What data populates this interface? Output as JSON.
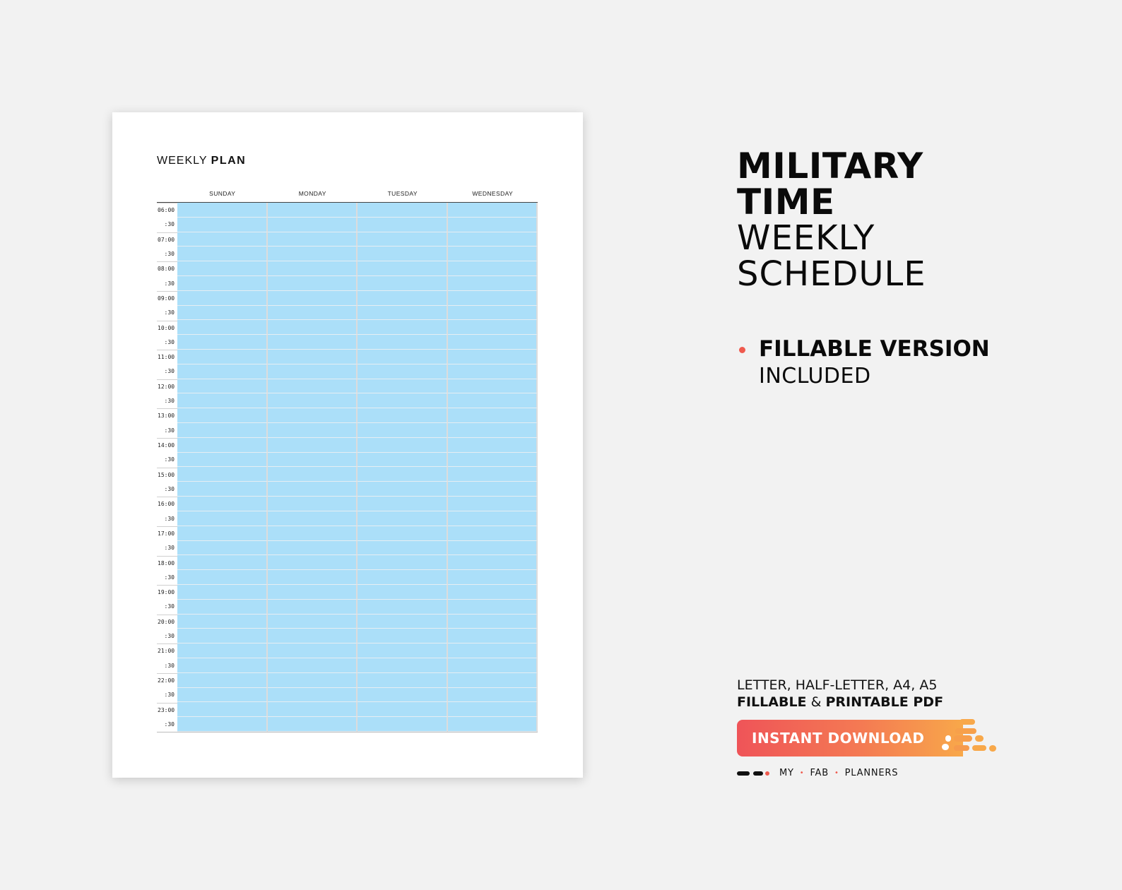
{
  "planner": {
    "title_light": "WEEKLY",
    "title_bold": "PLAN",
    "days": [
      "SUNDAY",
      "MONDAY",
      "TUESDAY",
      "WEDNESDAY"
    ],
    "times": [
      "06:00",
      ":30",
      "07:00",
      ":30",
      "08:00",
      ":30",
      "09:00",
      ":30",
      "10:00",
      ":30",
      "11:00",
      ":30",
      "12:00",
      ":30",
      "13:00",
      ":30",
      "14:00",
      ":30",
      "15:00",
      ":30",
      "16:00",
      ":30",
      "17:00",
      ":30",
      "18:00",
      ":30",
      "19:00",
      ":30",
      "20:00",
      ":30",
      "21:00",
      ":30",
      "22:00",
      ":30",
      "23:00",
      ":30"
    ],
    "cell_color": "#abdff9"
  },
  "promo": {
    "title_line1": "MILITARY",
    "title_line2": "TIME",
    "title_line3": "WEEKLY",
    "title_line4": "SCHEDULE",
    "feature_bold": "FILLABLE VERSION",
    "feature_light": "INCLUDED",
    "formats_line": "LETTER, HALF-LETTER, A4, A5",
    "fillable": "FILLABLE",
    "amp": "&",
    "printable": "PRINTABLE PDF",
    "download_label": "INSTANT DOWNLOAD",
    "brand": [
      "MY",
      "FAB",
      "PLANNERS"
    ],
    "accent_color": "#ef5a4e",
    "gradient_end_color": "#f8a84a"
  }
}
